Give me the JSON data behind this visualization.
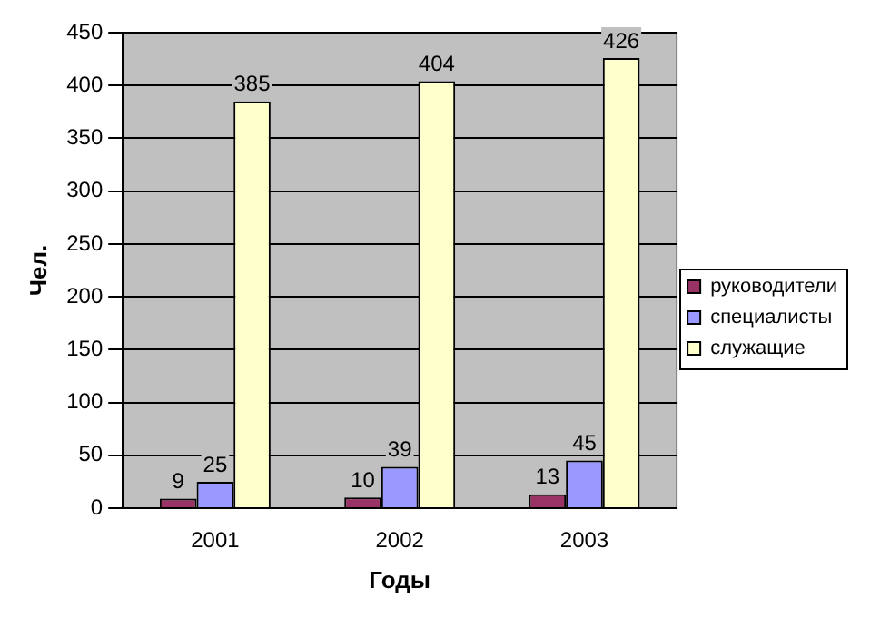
{
  "chart_data": {
    "type": "bar",
    "xlabel": "Годы",
    "ylabel": "Чел.",
    "categories": [
      "2001",
      "2002",
      "2003"
    ],
    "series": [
      {
        "name": "руководители",
        "color": "#993366",
        "values": [
          9,
          10,
          13
        ]
      },
      {
        "name": "специалисты",
        "color": "#9999ff",
        "values": [
          25,
          39,
          45
        ]
      },
      {
        "name": "служащие",
        "color": "#ffffcc",
        "values": [
          385,
          404,
          426
        ]
      }
    ],
    "ylim": [
      0,
      450
    ],
    "yticks": [
      0,
      50,
      100,
      150,
      200,
      250,
      300,
      350,
      400,
      450
    ],
    "grid": "y",
    "legend": "right",
    "data_labels": true
  }
}
